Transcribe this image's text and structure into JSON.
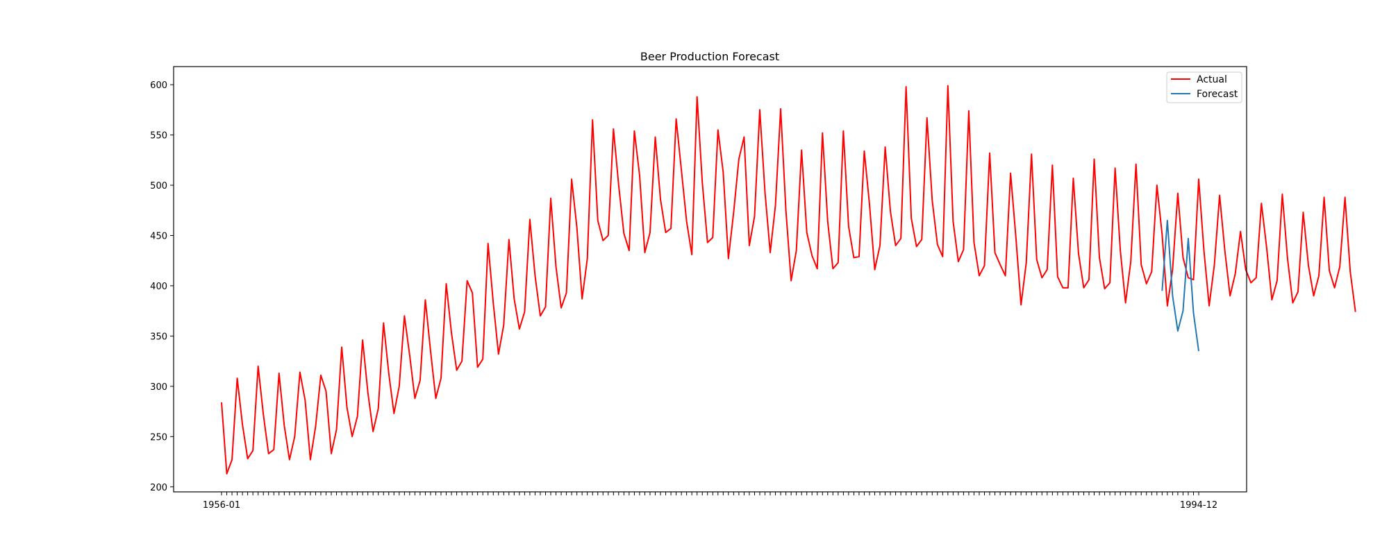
{
  "chart_data": {
    "type": "line",
    "title": "Beer Production Forecast",
    "xlabel": "",
    "ylabel": "",
    "ylim": [
      195,
      618
    ],
    "yticks": [
      200,
      250,
      300,
      350,
      400,
      450,
      500,
      550,
      600
    ],
    "grid": false,
    "legend_position": "top-right",
    "legend": [
      "Actual",
      "Forecast"
    ],
    "x_start_label": "1956-01",
    "x_end_label": "1994-12",
    "series": [
      {
        "name": "Actual",
        "color": "#ff0000",
        "start_index": 0,
        "values": [
          284,
          213,
          227,
          308,
          262,
          228,
          236,
          320,
          272,
          233,
          237,
          313,
          261,
          227,
          250,
          314,
          286,
          227,
          260,
          311,
          295,
          233,
          257,
          339,
          279,
          250,
          270,
          346,
          294,
          255,
          278,
          363,
          313,
          273,
          300,
          370,
          331,
          288,
          306,
          386,
          335,
          288,
          308,
          402,
          353,
          316,
          325,
          405,
          393,
          319,
          327,
          442,
          383,
          332,
          361,
          446,
          387,
          357,
          374,
          466,
          410,
          370,
          379,
          487,
          419,
          378,
          393,
          506,
          458,
          387,
          427,
          565,
          465,
          445,
          450,
          556,
          500,
          452,
          435,
          554,
          510,
          433,
          453,
          548,
          486,
          453,
          457,
          566,
          515,
          464,
          431,
          588,
          503,
          443,
          448,
          555,
          513,
          427,
          473,
          526,
          548,
          440,
          469,
          575,
          493,
          433,
          480,
          576,
          475,
          405,
          435,
          535,
          453,
          430,
          417,
          552,
          464,
          417,
          423,
          554,
          459,
          428,
          429,
          534,
          481,
          416,
          440,
          538,
          474,
          440,
          447,
          598,
          467,
          439,
          446,
          567,
          485,
          441,
          429,
          599,
          464,
          424,
          436,
          574,
          443,
          410,
          420,
          532,
          433,
          421,
          410,
          512,
          449,
          381,
          423,
          531,
          426,
          408,
          416,
          520,
          409,
          398,
          398,
          507,
          432,
          398,
          406,
          526,
          428,
          397,
          403,
          517,
          435,
          383,
          424,
          521,
          421,
          402,
          414,
          500,
          451,
          380,
          416,
          492,
          428,
          408,
          406,
          506,
          435,
          380,
          421,
          490,
          435,
          390,
          412,
          454,
          416,
          403,
          408,
          482,
          438,
          386,
          405,
          491,
          427,
          383,
          394,
          473,
          420,
          390,
          410,
          488,
          415,
          398,
          419,
          488,
          414,
          374
        ]
      },
      {
        "name": "Forecast",
        "color": "#1f77b4",
        "start_index": 180,
        "values": [
          395,
          465,
          390,
          355,
          375,
          447,
          373,
          335
        ]
      }
    ],
    "x_total_points": 188
  }
}
